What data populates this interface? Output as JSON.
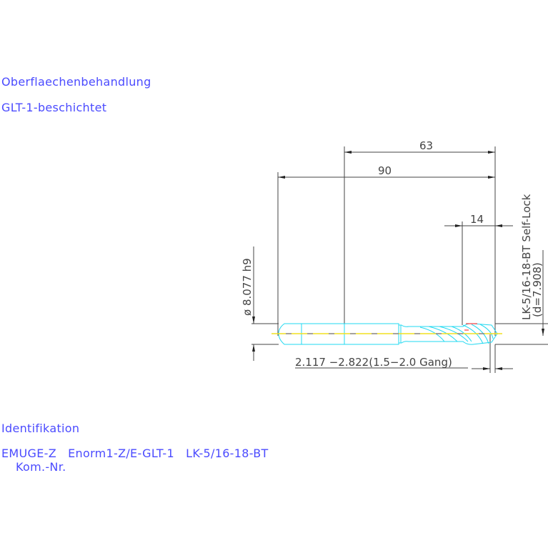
{
  "notes": {
    "surface_heading": "Oberflaechenbehandlung",
    "surface_value": "GLT-1-beschichtet",
    "ident_heading": "Identifikation",
    "ident_value": "EMUGE-Z   Enorm1-Z/E-GLT-1   LK-5/16-18-BT",
    "kom_nr": "Kom.-Nr."
  },
  "dimensions": {
    "length_63": "63",
    "length_90": "90",
    "length_14": "14",
    "diameter": "ø 8.077 h9",
    "thread": "LK-5/16-18-BT Self-Lock",
    "thread_d": "(d=7.908)",
    "core_range": "2.117 −2.822(1.5−2.0 Gang)"
  },
  "colors": {
    "text": "#4b4bff",
    "tool_outline": "#22d8f0",
    "centerline": "#f0e020",
    "dimension": "#444444",
    "accent": "#ff4040"
  }
}
